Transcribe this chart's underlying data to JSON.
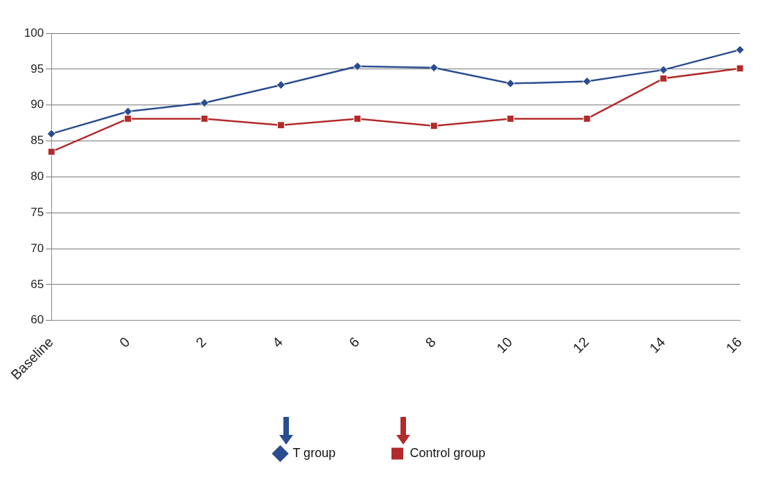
{
  "chart_data": {
    "type": "line",
    "categories": [
      "Baseline",
      "0",
      "2",
      "4",
      "6",
      "8",
      "10",
      "12",
      "14",
      "16"
    ],
    "series": [
      {
        "name": "T group",
        "color": "#2a4d8f",
        "marker": "diamond",
        "values": [
          86.0,
          89.1,
          90.3,
          92.8,
          95.4,
          95.2,
          93.0,
          93.3,
          94.9,
          97.7
        ]
      },
      {
        "name": "Control group",
        "color": "#b22a2a",
        "marker": "square",
        "values": [
          83.5,
          88.1,
          88.1,
          87.2,
          88.1,
          87.1,
          88.1,
          88.1,
          93.7,
          95.1
        ]
      }
    ],
    "ylim": [
      60,
      100
    ],
    "yticks": [
      60,
      65,
      70,
      75,
      80,
      85,
      90,
      95,
      100
    ],
    "grid": "y",
    "legend": "bottom",
    "line_style": "solid"
  }
}
